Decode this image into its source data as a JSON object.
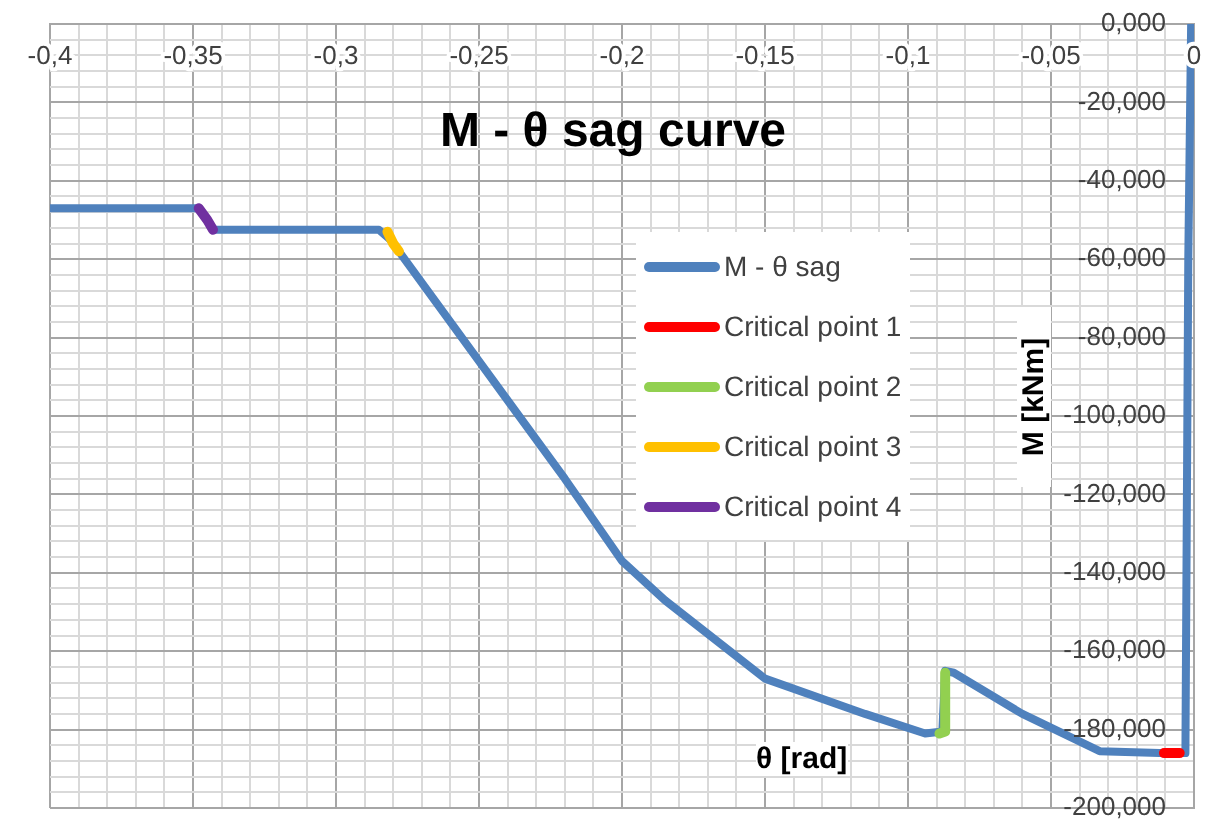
{
  "chart_data": {
    "type": "line",
    "title": "M - θ sag curve",
    "xlabel": "θ [rad]",
    "ylabel": "M [kNm]",
    "xlim": [
      -0.4,
      0
    ],
    "ylim": [
      -200,
      0
    ],
    "xticks": [
      {
        "value": -0.4,
        "label": "-0,4"
      },
      {
        "value": -0.39,
        "label": null
      },
      {
        "value": -0.38,
        "label": null
      },
      {
        "value": -0.37,
        "label": null
      },
      {
        "value": -0.36,
        "label": null
      },
      {
        "value": -0.35,
        "label": "-0,35"
      },
      {
        "value": -0.34,
        "label": null
      },
      {
        "value": -0.33,
        "label": null
      },
      {
        "value": -0.32,
        "label": null
      },
      {
        "value": -0.31,
        "label": null
      },
      {
        "value": -0.3,
        "label": "-0,3"
      },
      {
        "value": -0.29,
        "label": null
      },
      {
        "value": -0.28,
        "label": null
      },
      {
        "value": -0.27,
        "label": null
      },
      {
        "value": -0.26,
        "label": null
      },
      {
        "value": -0.25,
        "label": "-0,25"
      },
      {
        "value": -0.24,
        "label": null
      },
      {
        "value": -0.23,
        "label": null
      },
      {
        "value": -0.22,
        "label": null
      },
      {
        "value": -0.21,
        "label": null
      },
      {
        "value": -0.2,
        "label": "-0,2"
      },
      {
        "value": -0.19,
        "label": null
      },
      {
        "value": -0.18,
        "label": null
      },
      {
        "value": -0.17,
        "label": null
      },
      {
        "value": -0.16,
        "label": null
      },
      {
        "value": -0.15,
        "label": "-0,15"
      },
      {
        "value": -0.14,
        "label": null
      },
      {
        "value": -0.13,
        "label": null
      },
      {
        "value": -0.12,
        "label": null
      },
      {
        "value": -0.11,
        "label": null
      },
      {
        "value": -0.1,
        "label": "-0,1"
      },
      {
        "value": -0.09,
        "label": null
      },
      {
        "value": -0.08,
        "label": null
      },
      {
        "value": -0.07,
        "label": null
      },
      {
        "value": -0.06,
        "label": null
      },
      {
        "value": -0.05,
        "label": "-0,05"
      },
      {
        "value": -0.04,
        "label": null
      },
      {
        "value": -0.03,
        "label": null
      },
      {
        "value": -0.02,
        "label": null
      },
      {
        "value": -0.01,
        "label": null
      },
      0
    ],
    "yticks": [
      {
        "value": 0,
        "label": "0,000"
      },
      {
        "value": -4,
        "label": null
      },
      {
        "value": -8,
        "label": null
      },
      {
        "value": -12,
        "label": null
      },
      {
        "value": -16,
        "label": null
      },
      {
        "value": -20,
        "label": "-20,000"
      },
      {
        "value": -24,
        "label": null
      },
      {
        "value": -28,
        "label": null
      },
      {
        "value": -32,
        "label": null
      },
      {
        "value": -36,
        "label": null
      },
      {
        "value": -40,
        "label": "-40,000"
      },
      {
        "value": -44,
        "label": null
      },
      {
        "value": -48,
        "label": null
      },
      {
        "value": -52,
        "label": null
      },
      {
        "value": -56,
        "label": null
      },
      {
        "value": -60,
        "label": "-60,000"
      },
      {
        "value": -64,
        "label": null
      },
      {
        "value": -68,
        "label": null
      },
      {
        "value": -72,
        "label": null
      },
      {
        "value": -76,
        "label": null
      },
      {
        "value": -80,
        "label": "-80,000"
      },
      {
        "value": -84,
        "label": null
      },
      {
        "value": -88,
        "label": null
      },
      {
        "value": -92,
        "label": null
      },
      {
        "value": -96,
        "label": null
      },
      {
        "value": -100,
        "label": "-100,000"
      },
      {
        "value": -104,
        "label": null
      },
      {
        "value": -108,
        "label": null
      },
      {
        "value": -112,
        "label": null
      },
      {
        "value": -116,
        "label": null
      },
      {
        "value": -120,
        "label": "-120,000"
      },
      {
        "value": -124,
        "label": null
      },
      {
        "value": -128,
        "label": null
      },
      {
        "value": -132,
        "label": null
      },
      {
        "value": -136,
        "label": null
      },
      {
        "value": -140,
        "label": "-140,000"
      },
      {
        "value": -144,
        "label": null
      },
      {
        "value": -148,
        "label": null
      },
      {
        "value": -152,
        "label": null
      },
      {
        "value": -156,
        "label": null
      },
      {
        "value": -160,
        "label": "-160,000"
      },
      {
        "value": -164,
        "label": null
      },
      {
        "value": -168,
        "label": null
      },
      {
        "value": -172,
        "label": null
      },
      {
        "value": -176,
        "label": null
      },
      {
        "value": -180,
        "label": "-180,000"
      },
      {
        "value": -184,
        "label": null
      },
      {
        "value": -188,
        "label": null
      },
      {
        "value": -192,
        "label": null
      },
      {
        "value": -196,
        "label": null
      },
      {
        "value": -200,
        "label": "-200,000"
      }
    ],
    "grid": true,
    "legend": "right",
    "series": [
      {
        "name": "M - θ sag",
        "color": "#4f81bd",
        "x": [
          -0.4,
          -0.348,
          -0.345,
          -0.343,
          -0.285,
          -0.281,
          -0.278,
          -0.25,
          -0.22,
          -0.2,
          -0.185,
          -0.15,
          -0.115,
          -0.094,
          -0.088,
          -0.087,
          -0.084,
          -0.06,
          -0.033,
          -0.012,
          -0.003,
          -0.002,
          -0.001
        ],
        "values": [
          -47,
          -47,
          -50,
          -52.5,
          -52.5,
          -55,
          -58,
          -86,
          -116,
          -137,
          -147,
          -167,
          -176,
          -181,
          -180.5,
          -165,
          -165.5,
          -176,
          -185.5,
          -186,
          -186,
          -60,
          0
        ]
      },
      {
        "name": "Critical point 1",
        "color": "#ff0000",
        "x": [
          -0.0105,
          -0.005
        ],
        "values": [
          -186,
          -186
        ]
      },
      {
        "name": "Critical point 2",
        "color": "#92d050",
        "x": [
          -0.089,
          -0.087,
          -0.087
        ],
        "values": [
          -181,
          -180.5,
          -165.5
        ]
      },
      {
        "name": "Critical point 3",
        "color": "#ffc000",
        "x": [
          -0.282,
          -0.28,
          -0.278
        ],
        "values": [
          -53,
          -56,
          -58
        ]
      },
      {
        "name": "Critical point 4",
        "color": "#7030a0",
        "x": [
          -0.348,
          -0.345,
          -0.343
        ],
        "values": [
          -47,
          -50,
          -52.5
        ]
      }
    ]
  }
}
